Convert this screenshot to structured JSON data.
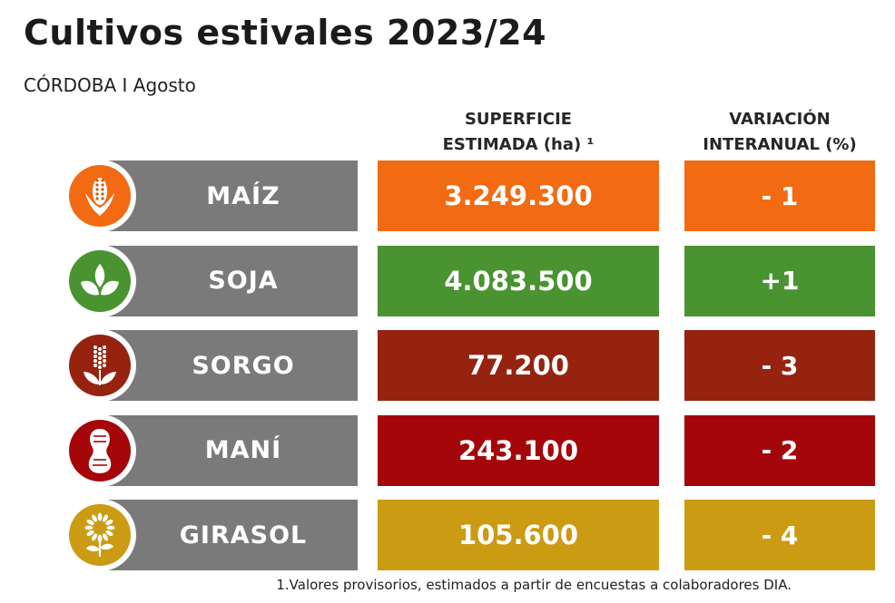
{
  "title": "Cultivos estivales 2023/24",
  "subtitle": "CÓRDOBA I Agosto",
  "headers": {
    "area_line1": "SUPERFICIE",
    "area_line2": "ESTIMADA (ha) ¹",
    "var_line1": "VARIACIÓN",
    "var_line2": "INTERANUAL (%)"
  },
  "footnote": "1.Valores provisorios, estimados a partir de encuestas a colaboradores DIA.",
  "chart_data": {
    "type": "table",
    "title": "Cultivos estivales 2023/24",
    "columns": [
      "",
      "SUPERFICIE ESTIMADA (ha) ¹",
      "VARIACIÓN INTERANUAL (%)"
    ],
    "rows": [
      {
        "crop": "MAÍZ",
        "area": "3.249.300",
        "area_value": 3249300,
        "variation": "- 1",
        "variation_value": -1,
        "color": "#f26b12",
        "icon": "corn-icon"
      },
      {
        "crop": "SOJA",
        "area": "4.083.500",
        "area_value": 4083500,
        "variation": "+1",
        "variation_value": 1,
        "color": "#4a9331",
        "icon": "soy-leaves-icon"
      },
      {
        "crop": "SORGO",
        "area": "77.200",
        "area_value": 77200,
        "variation": "- 3",
        "variation_value": -3,
        "color": "#952310",
        "icon": "sorghum-icon"
      },
      {
        "crop": "MANÍ",
        "area": "243.100",
        "area_value": 243100,
        "variation": "- 2",
        "variation_value": -2,
        "color": "#a5060a",
        "icon": "peanut-icon"
      },
      {
        "crop": "GIRASOL",
        "area": "105.600",
        "area_value": 105600,
        "variation": "- 4",
        "variation_value": -4,
        "color": "#cc9b14",
        "icon": "sunflower-icon"
      }
    ]
  }
}
